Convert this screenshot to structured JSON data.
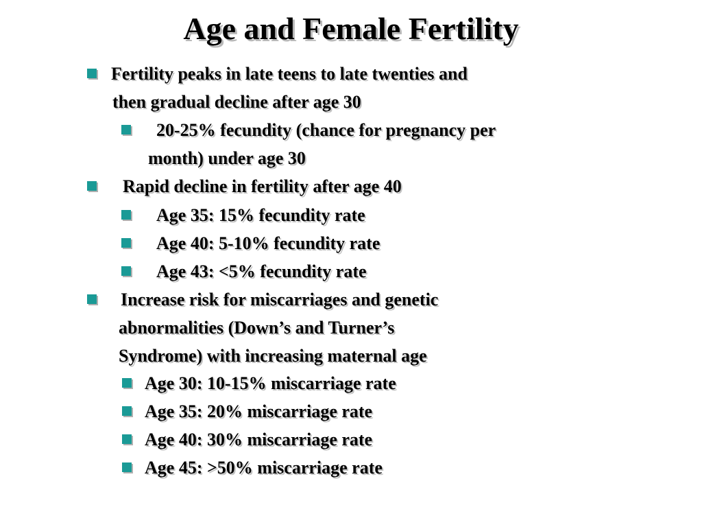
{
  "slide": {
    "title": "Age and Female Fertility",
    "bullets": [
      {
        "level": 1,
        "lines": [
          "Fertility peaks in late teens to late twenties and",
          "then gradual decline after age 30"
        ]
      },
      {
        "level": 2,
        "lines": [
          "20-25% fecundity (chance for pregnancy per",
          "month) under age 30"
        ]
      },
      {
        "level": 1,
        "lines": [
          "Rapid decline in fertility after age 40"
        ]
      },
      {
        "level": 2,
        "lines": [
          "Age 35:  15% fecundity rate"
        ]
      },
      {
        "level": 2,
        "lines": [
          "Age 40:  5-10% fecundity rate"
        ]
      },
      {
        "level": 2,
        "lines": [
          "Age 43:  <5% fecundity rate"
        ]
      },
      {
        "level": 1,
        "lines": [
          "Increase risk for miscarriages and genetic",
          "abnormalities (Down’s and Turner’s",
          "Syndrome) with increasing maternal age"
        ]
      },
      {
        "level": 2,
        "lines": [
          "Age 30: 10-15% miscarriage rate"
        ]
      },
      {
        "level": 2,
        "lines": [
          "Age 35: 20% miscarriage rate"
        ]
      },
      {
        "level": 2,
        "lines": [
          "Age 40: 30% miscarriage rate"
        ]
      },
      {
        "level": 2,
        "lines": [
          "Age 45: >50% miscarriage rate"
        ]
      }
    ],
    "bullet_color": "#1a9a96"
  }
}
